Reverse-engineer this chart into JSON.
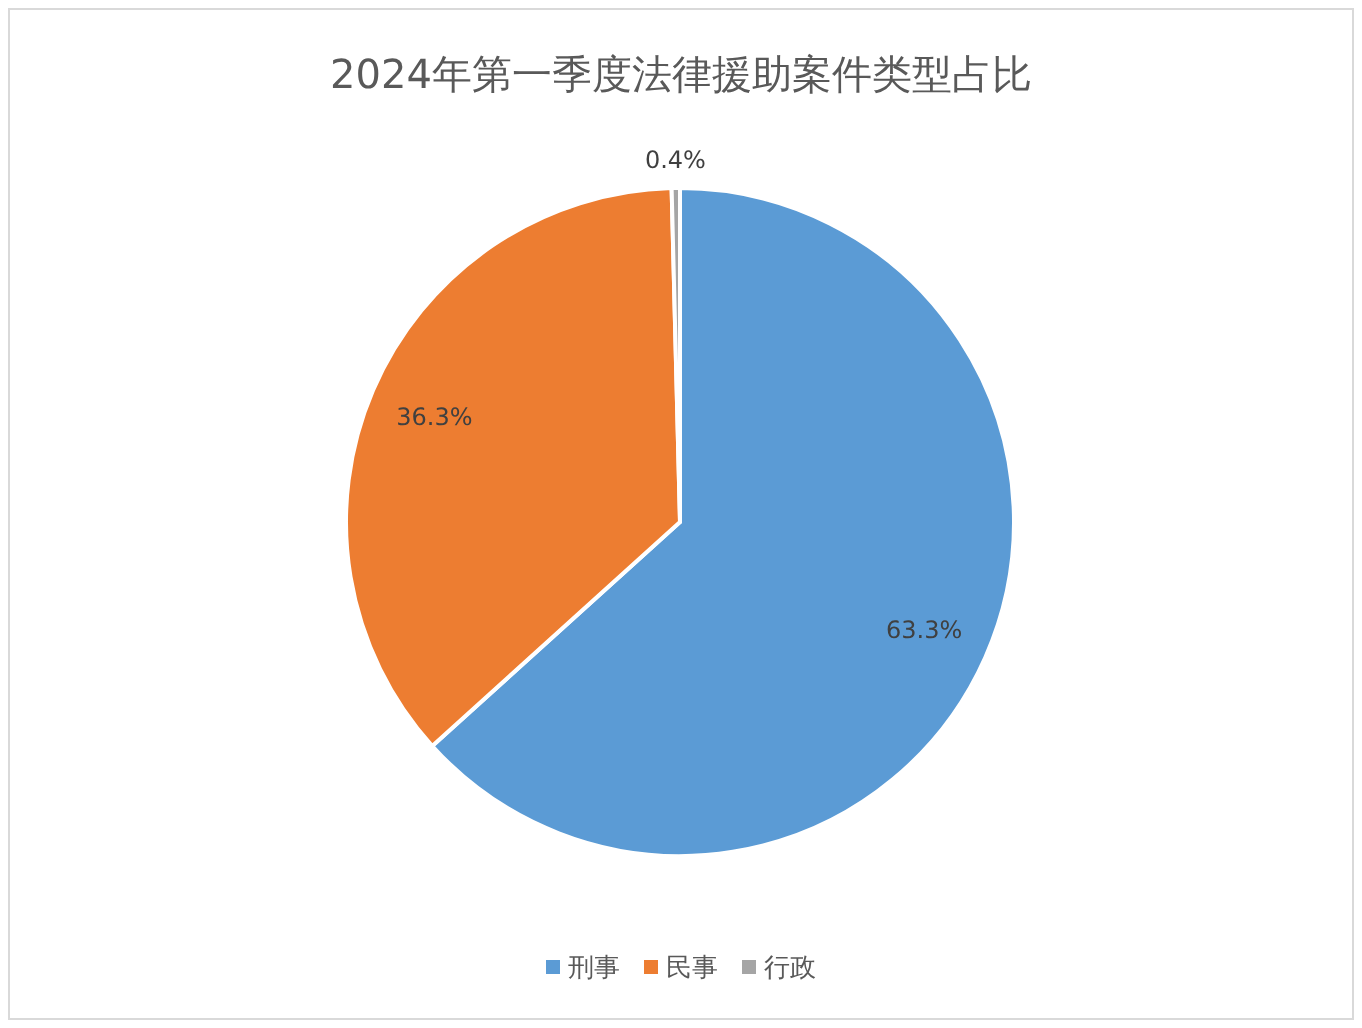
{
  "chart_data": {
    "type": "pie",
    "title": "2024年第一季度法律援助案件类型占比",
    "categories": [
      "刑事",
      "民事",
      "行政"
    ],
    "values": [
      63.3,
      36.3,
      0.4
    ],
    "value_labels": [
      "63.3%",
      "36.3%",
      "0.4%"
    ],
    "colors": [
      "#5b9bd5",
      "#ed7d31",
      "#a5a5a5"
    ],
    "legend": "bottom"
  }
}
